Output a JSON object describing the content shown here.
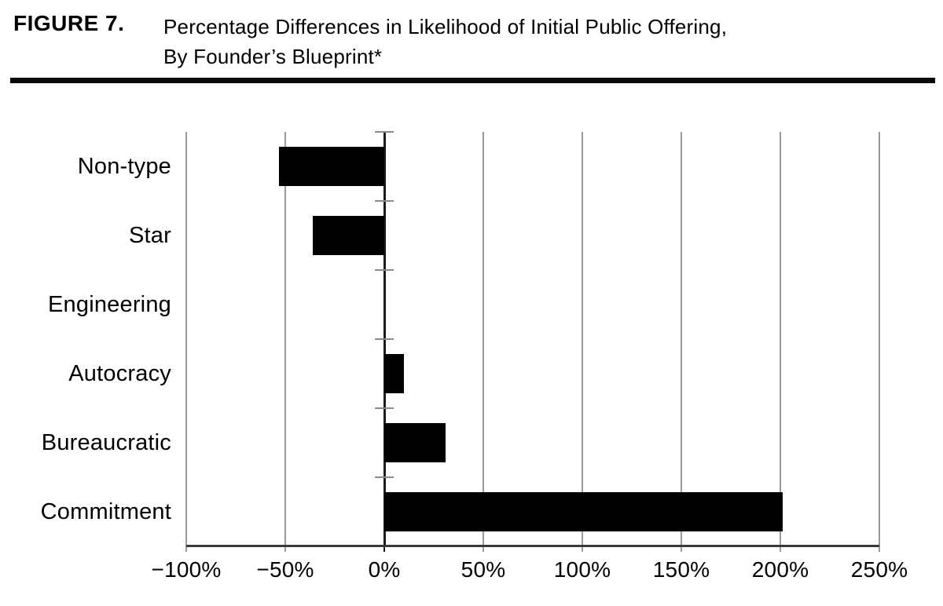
{
  "header": {
    "figure_label": "FIGURE 7.",
    "title_line1": "Percentage Differences in Likelihood of Initial Public Offering,",
    "title_line2": "By Founder’s Blueprint*"
  },
  "chart_data": {
    "type": "bar",
    "orientation": "horizontal",
    "title": "Percentage Differences in Likelihood of Initial Public Offering, By Founder’s Blueprint*",
    "categories": [
      "Non-type",
      "Star",
      "Engineering",
      "Autocracy",
      "Bureaucratic",
      "Commitment"
    ],
    "values": [
      -53,
      -36,
      0,
      10,
      31,
      201
    ],
    "unit": "%",
    "xlim": [
      -100,
      250
    ],
    "x_ticks": [
      {
        "value": -100,
        "label": "−100%"
      },
      {
        "value": -50,
        "label": "−50%"
      },
      {
        "value": 0,
        "label": "0%"
      },
      {
        "value": 50,
        "label": "50%"
      },
      {
        "value": 100,
        "label": "100%"
      },
      {
        "value": 150,
        "label": "150%"
      },
      {
        "value": 200,
        "label": "200%"
      },
      {
        "value": 250,
        "label": "250%"
      }
    ],
    "grid": "vertical gridlines every 50%, no top border",
    "legend": "none",
    "baseline_category": "Engineering (0%)",
    "colors": {
      "bar": "#000000",
      "gridline": "#9b9b9b",
      "zero_axis": "#1c1c1c",
      "bottom_axis": "#3a3a3a",
      "boundary_tick": "#8a8a8a",
      "text": "#000000"
    }
  }
}
